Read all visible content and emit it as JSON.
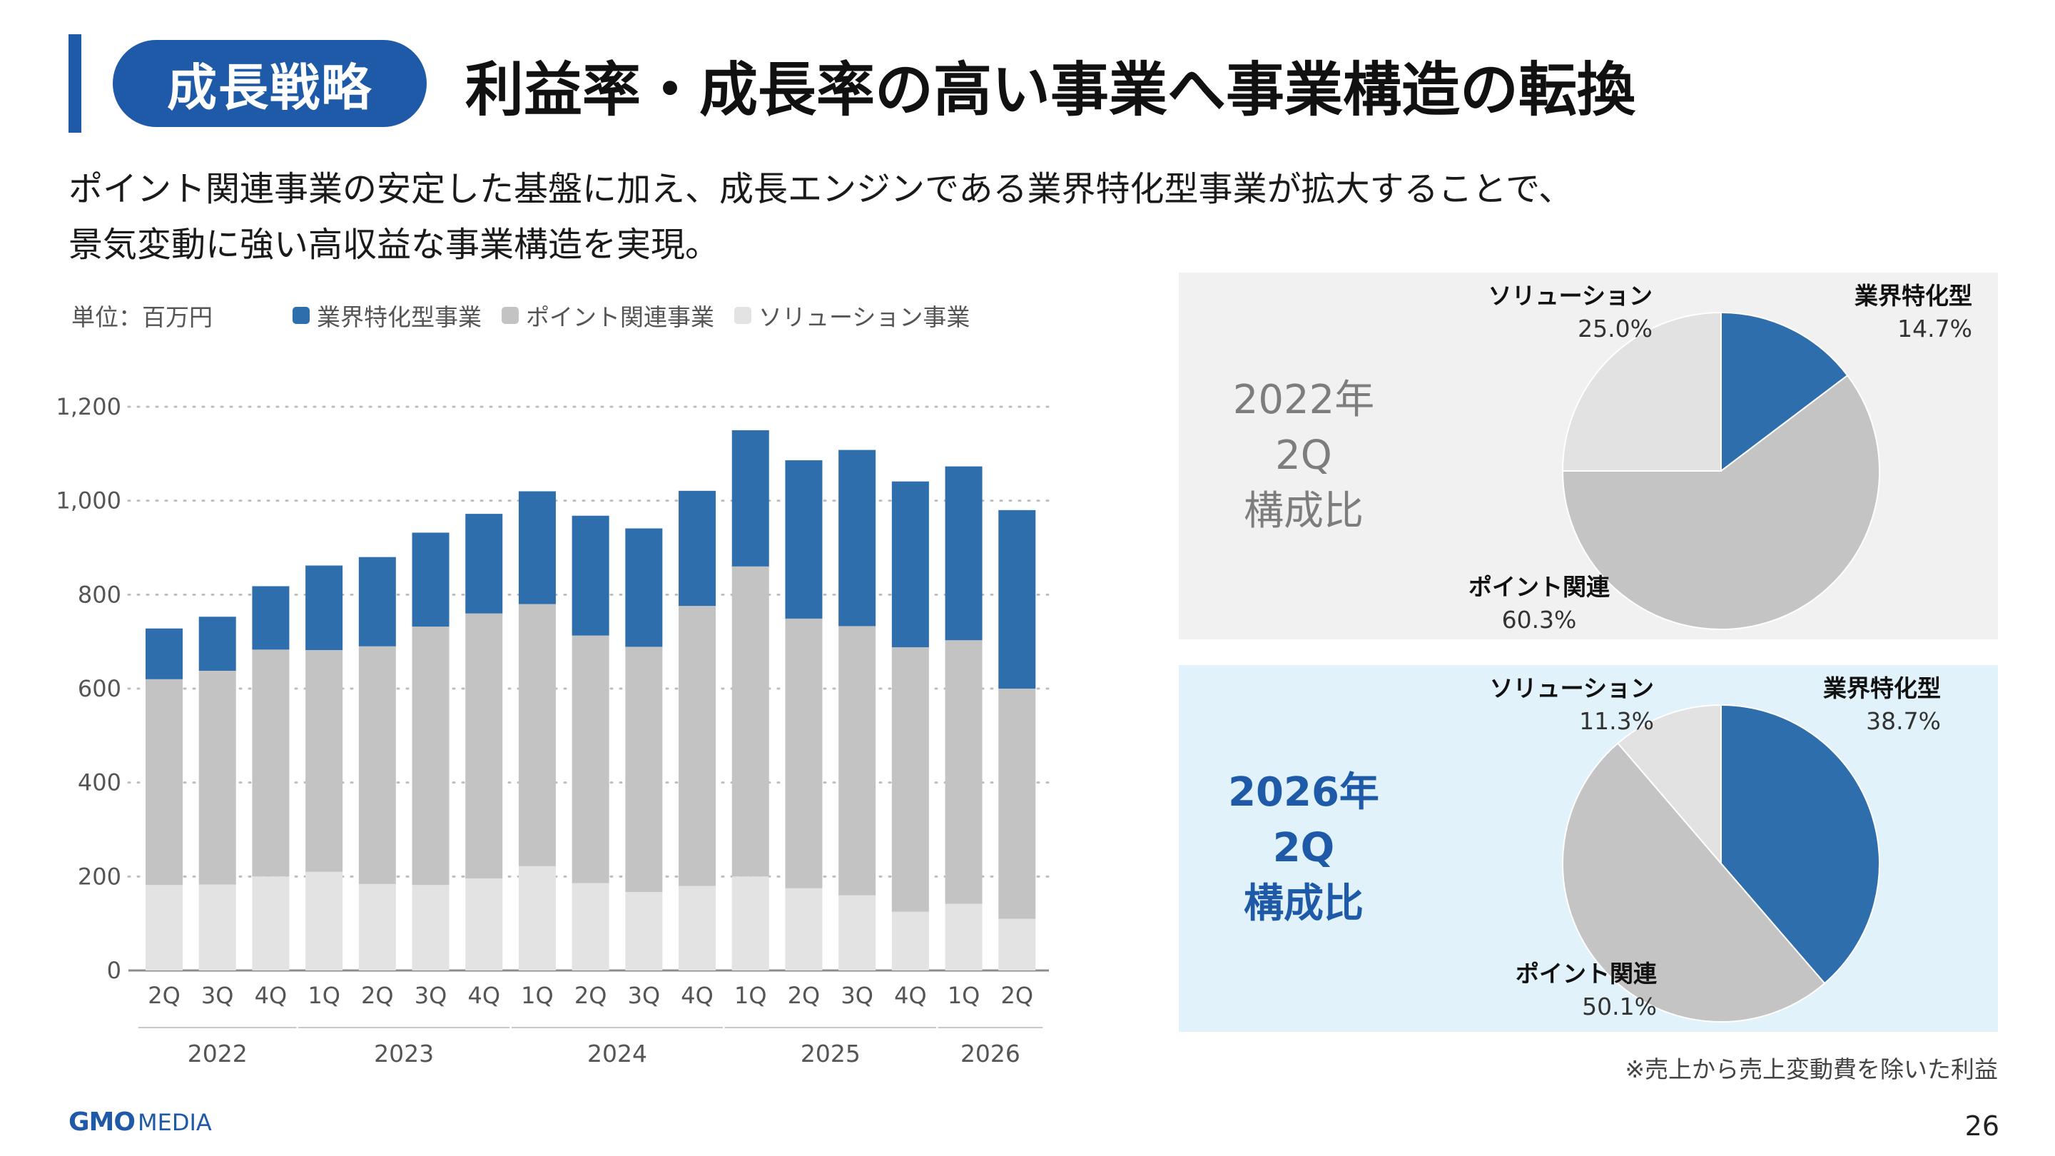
{
  "header": {
    "badge": "成長戦略",
    "title": "利益率・成長率の高い事業へ事業構造の転換"
  },
  "lead": {
    "line1": "ポイント関連事業の安定した基盤に加え、成長エンジンである業界特化型事業が拡大することで、",
    "line2": "景気変動に強い高収益な事業構造を実現。"
  },
  "chart_data": [
    {
      "type": "bar",
      "stacked": true,
      "unit_label": "単位：百万円",
      "categories": [
        "2Q",
        "3Q",
        "4Q",
        "1Q",
        "2Q",
        "3Q",
        "4Q",
        "1Q",
        "2Q",
        "3Q",
        "4Q",
        "1Q",
        "2Q",
        "3Q",
        "4Q",
        "1Q",
        "2Q"
      ],
      "year_groups": [
        {
          "label": "2022",
          "start": 0,
          "end": 2
        },
        {
          "label": "2023",
          "start": 3,
          "end": 6
        },
        {
          "label": "2024",
          "start": 7,
          "end": 10
        },
        {
          "label": "2025",
          "start": 11,
          "end": 14
        },
        {
          "label": "2026",
          "start": 15,
          "end": 16
        }
      ],
      "series": [
        {
          "name": "ソリューション事業",
          "color": "#e3e3e3",
          "values": [
            182,
            183,
            200,
            210,
            184,
            182,
            196,
            222,
            186,
            167,
            180,
            200,
            175,
            160,
            125,
            142,
            110
          ]
        },
        {
          "name": "ポイント関連事業",
          "color": "#c3c3c3",
          "values": [
            438,
            455,
            483,
            472,
            506,
            550,
            564,
            558,
            527,
            522,
            596,
            660,
            574,
            573,
            563,
            561,
            490
          ]
        },
        {
          "name": "業界特化型事業",
          "color": "#2e6eac",
          "values": [
            108,
            115,
            135,
            180,
            190,
            200,
            212,
            240,
            255,
            252,
            245,
            290,
            337,
            375,
            353,
            370,
            380
          ]
        }
      ],
      "legend_order": [
        2,
        1,
        0
      ],
      "ylim": [
        0,
        1200
      ],
      "yticks": [
        0,
        200,
        400,
        600,
        800,
        1000,
        1200
      ],
      "ytick_labels": [
        "0",
        "200",
        "400",
        "600",
        "800",
        "1,000",
        "1,200"
      ],
      "grid": "horizontal dotted",
      "legend_position": "top"
    },
    {
      "type": "pie",
      "period_label": [
        "2022年",
        "2Q",
        "構成比"
      ],
      "slices": [
        {
          "name": "業界特化型",
          "percent_label": "14.7%",
          "value": 14.7,
          "color": "#2e6eac"
        },
        {
          "name": "ポイント関連",
          "percent_label": "60.3%",
          "value": 60.3,
          "color": "#c4c4c4"
        },
        {
          "name": "ソリューション",
          "percent_label": "25.0%",
          "value": 25.0,
          "color": "#e2e2e2"
        }
      ]
    },
    {
      "type": "pie",
      "period_label": [
        "2026年",
        "2Q",
        "構成比"
      ],
      "slices": [
        {
          "name": "業界特化型",
          "percent_label": "38.7%",
          "value": 38.7,
          "color": "#2e6eac"
        },
        {
          "name": "ポイント関連",
          "percent_label": "50.1%",
          "value": 50.1,
          "color": "#c4c4c4"
        },
        {
          "name": "ソリューション",
          "percent_label": "11.3%",
          "value": 11.3,
          "color": "#e2e2e2"
        }
      ]
    }
  ],
  "footnote": "※売上から売上変動費を除いた利益",
  "logo": {
    "gmo": "GMO",
    "media": "MEDIA"
  },
  "page_number": "26"
}
